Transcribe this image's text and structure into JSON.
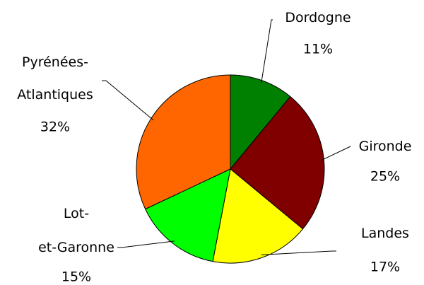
{
  "chart_data": {
    "type": "pie",
    "categories": [
      "Dordogne",
      "Gironde",
      "Landes",
      "Lot-et-Garonne",
      "Pyrénées-Atlantiques"
    ],
    "values": [
      11,
      25,
      17,
      15,
      32
    ],
    "value_labels": [
      "11%",
      "25%",
      "17%",
      "15%",
      "32%"
    ],
    "colors": [
      "#008000",
      "#800000",
      "#ffff00",
      "#00ff00",
      "#ff6600"
    ]
  }
}
